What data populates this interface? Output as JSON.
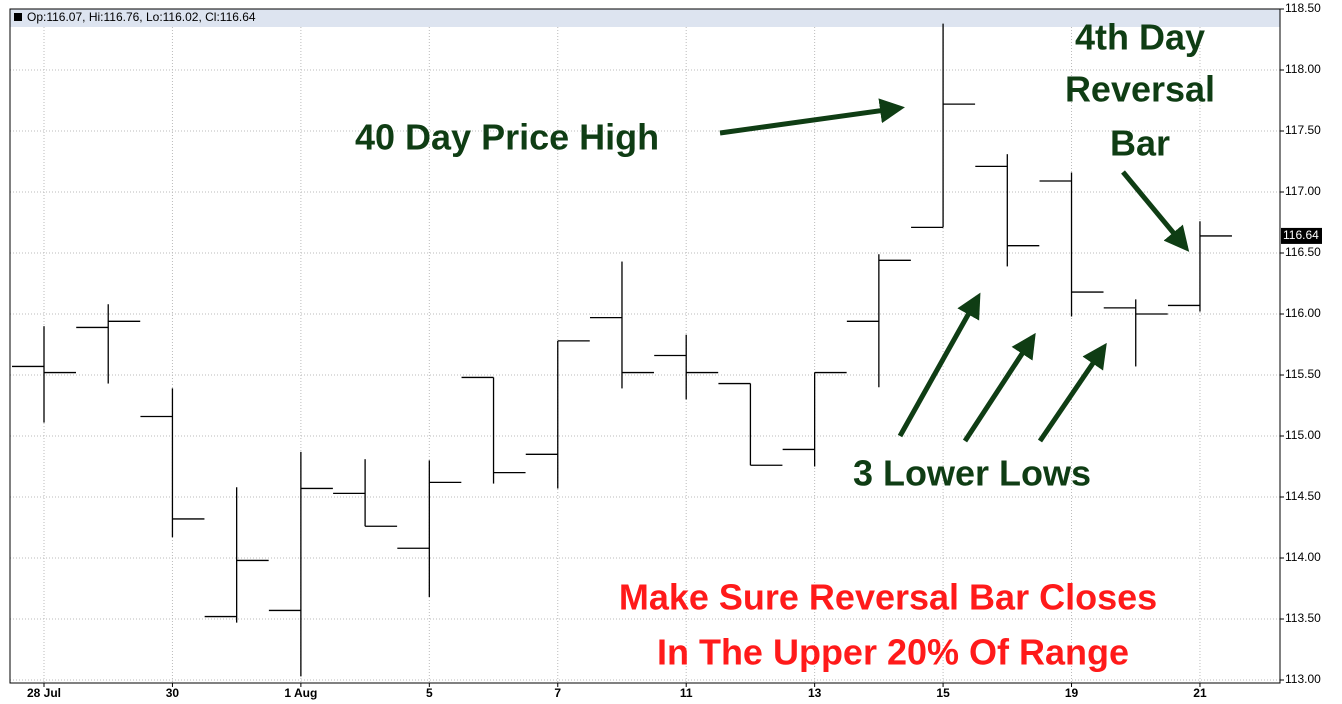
{
  "chart_data": {
    "type": "ohlc",
    "header": "Op:116.07, Hi:116.76, Lo:116.02, Cl:116.64",
    "categories": [
      "28 Jul",
      null,
      "30",
      null,
      "1 Aug",
      null,
      "5",
      null,
      "7",
      null,
      "11",
      null,
      "13",
      null,
      "15",
      null,
      "19",
      null,
      "21"
    ],
    "open": [
      115.57,
      115.89,
      115.16,
      113.52,
      113.57,
      114.53,
      114.08,
      115.48,
      114.85,
      115.97,
      115.66,
      115.43,
      114.89,
      115.94,
      116.71,
      117.21,
      117.09,
      116.05,
      116.07
    ],
    "high": [
      115.9,
      116.08,
      115.39,
      114.58,
      114.87,
      114.81,
      114.8,
      115.48,
      115.78,
      116.43,
      115.83,
      115.43,
      115.52,
      116.49,
      118.38,
      117.31,
      117.16,
      116.12,
      116.76
    ],
    "low": [
      115.11,
      115.43,
      114.17,
      113.47,
      113.03,
      114.26,
      113.68,
      114.61,
      114.57,
      115.39,
      115.3,
      114.76,
      114.75,
      115.4,
      116.71,
      116.39,
      115.98,
      115.57,
      116.02
    ],
    "close": [
      115.52,
      115.94,
      114.32,
      113.98,
      114.57,
      114.26,
      114.62,
      114.7,
      115.78,
      115.52,
      115.52,
      114.76,
      115.52,
      116.44,
      117.72,
      116.56,
      116.18,
      116.0,
      116.64
    ],
    "color": "#000000",
    "ylim": [
      113.0,
      118.5
    ],
    "yticks": [
      {
        "value": 113.0,
        "label": "113.00"
      },
      {
        "value": 113.5,
        "label": "113.50"
      },
      {
        "value": 114.0,
        "label": "114.00"
      },
      {
        "value": 114.5,
        "label": "114.50"
      },
      {
        "value": 115.0,
        "label": "115.00"
      },
      {
        "value": 115.5,
        "label": "115.50"
      },
      {
        "value": 116.0,
        "label": "116.00"
      },
      {
        "value": 116.5,
        "label": "116.50"
      },
      {
        "value": 117.0,
        "label": "117.00"
      },
      {
        "value": 117.5,
        "label": "117.50"
      },
      {
        "value": 118.0,
        "label": "118.00"
      },
      {
        "value": 118.5,
        "label": "118.50"
      }
    ],
    "grid": true,
    "annotations": [
      "40 Day Price High",
      "4th Day",
      "Reversal",
      "Bar",
      "3 Lower Lows",
      "Make Sure Reversal Bar Closes",
      "In The Upper 20% Of Range"
    ]
  }
}
